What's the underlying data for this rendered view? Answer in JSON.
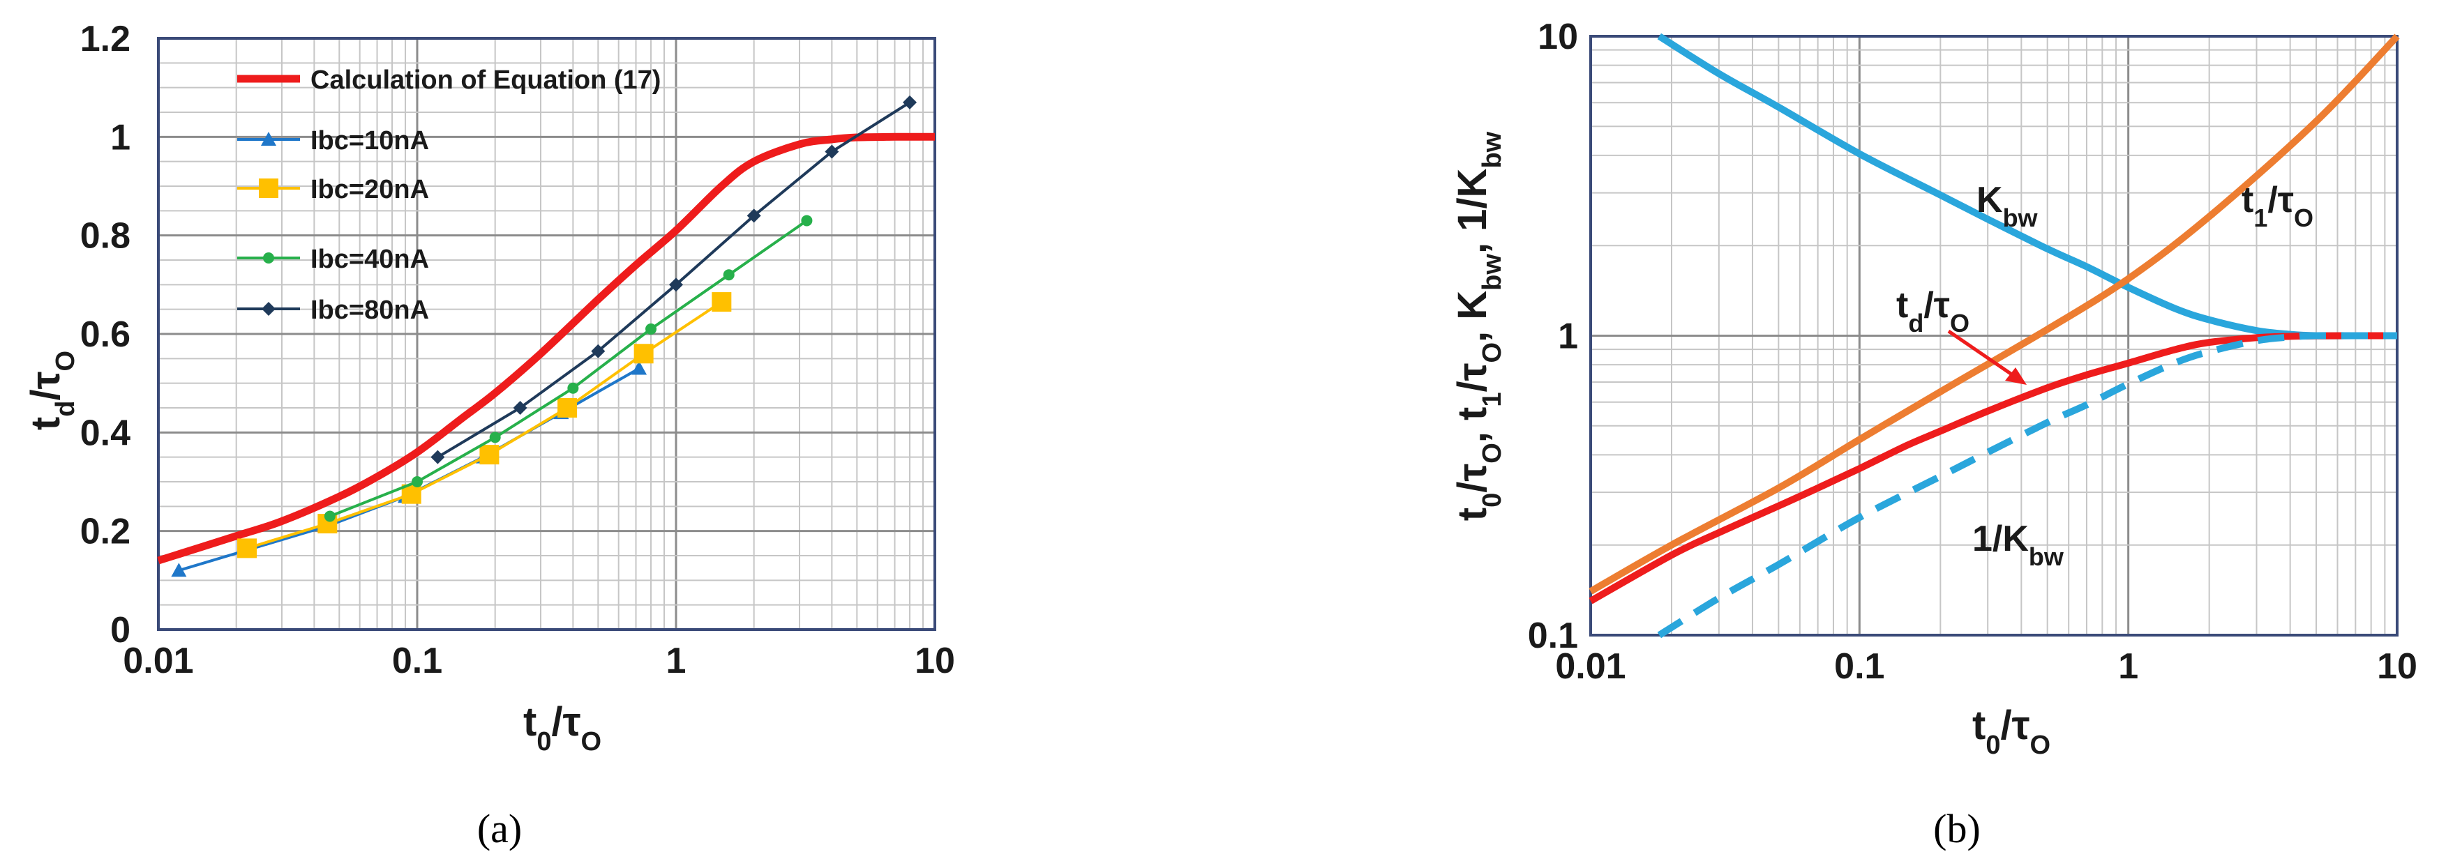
{
  "chart_data": [
    {
      "type": "line",
      "panel_label": "(a)",
      "xscale": "log",
      "xlim": [
        0.01,
        10
      ],
      "ylim": [
        0,
        1.2
      ],
      "grid": true,
      "legend_position": "top-left",
      "x_ticks": [
        "0.01",
        "0.1",
        "1",
        "10"
      ],
      "y_ticks": [
        "0",
        "0.2",
        "0.4",
        "0.6",
        "0.8",
        "1",
        "1.2"
      ],
      "ylabel": {
        "main": "t",
        "sub": "d",
        "sep": "/τ",
        "sub2": "O"
      },
      "xlabel": {
        "main": "t",
        "sub": "0",
        "sep": "/τ",
        "sub2": "O"
      },
      "series": [
        {
          "name": "Calculation of Equation (17)",
          "color": "#ee1c1c",
          "marker": "none",
          "x": [
            0.01,
            0.02,
            0.03,
            0.05,
            0.07,
            0.1,
            0.15,
            0.2,
            0.3,
            0.5,
            0.7,
            1,
            1.5,
            2,
            3,
            4,
            5,
            7,
            10
          ],
          "y": [
            0.14,
            0.19,
            0.22,
            0.27,
            0.31,
            0.36,
            0.43,
            0.48,
            0.56,
            0.67,
            0.74,
            0.81,
            0.9,
            0.95,
            0.985,
            0.995,
            0.999,
            1.0,
            1.0
          ]
        },
        {
          "name": "Ibc=10nA",
          "color": "#1f77c9",
          "marker": "triangle",
          "x": [
            0.012,
            0.045,
            0.09,
            0.18,
            0.36,
            0.72
          ],
          "y": [
            0.12,
            0.21,
            0.27,
            0.35,
            0.44,
            0.53
          ]
        },
        {
          "name": "Ibc=20nA",
          "color": "#ffc000",
          "marker": "square",
          "x": [
            0.022,
            0.045,
            0.095,
            0.19,
            0.38,
            0.75,
            1.5
          ],
          "y": [
            0.165,
            0.215,
            0.275,
            0.355,
            0.45,
            0.56,
            0.665
          ]
        },
        {
          "name": "Ibc=40nA",
          "color": "#27b04b",
          "marker": "circle",
          "x": [
            0.046,
            0.1,
            0.2,
            0.4,
            0.8,
            1.6,
            3.2
          ],
          "y": [
            0.23,
            0.3,
            0.39,
            0.49,
            0.61,
            0.72,
            0.83
          ]
        },
        {
          "name": "Ibc=80nA",
          "color": "#1f3a5a",
          "marker": "diamond",
          "x": [
            0.12,
            0.25,
            0.5,
            1.0,
            2.0,
            4.0,
            8.0
          ],
          "y": [
            0.35,
            0.45,
            0.565,
            0.7,
            0.84,
            0.97,
            1.07
          ]
        }
      ]
    },
    {
      "type": "line",
      "panel_label": "(b)",
      "xscale": "log",
      "yscale": "log",
      "xlim": [
        0.01,
        10
      ],
      "ylim": [
        0.1,
        10
      ],
      "grid": true,
      "x_ticks": [
        "0.01",
        "0.1",
        "1",
        "10"
      ],
      "y_ticks": [
        "0.1",
        "1",
        "10"
      ],
      "xlabel": {
        "main": "t",
        "sub": "0",
        "sep": "/τ",
        "sub2": "O"
      },
      "ylabel": {
        "parts": [
          "t",
          "0",
          "/τ",
          "O",
          ", t",
          "1",
          "/τ",
          "O",
          ", K",
          "bw",
          ", 1/K",
          "bw"
        ]
      },
      "annotations": {
        "kbw": {
          "main": "K",
          "sub": "bw"
        },
        "t1": {
          "main": "t",
          "sub": "1",
          "sep": "/τ",
          "sub2": "O"
        },
        "td": {
          "main": "t",
          "sub": "d",
          "sep": "/τ",
          "sub2": "O"
        },
        "inv": {
          "main": "1/K",
          "sub": "bw"
        }
      },
      "series": [
        {
          "key": "kbw",
          "color": "#2aa6dc",
          "dash": false,
          "x": [
            0.018,
            0.03,
            0.05,
            0.1,
            0.2,
            0.3,
            0.5,
            0.7,
            1,
            1.5,
            2,
            3,
            4,
            5,
            7,
            10
          ],
          "y": [
            10,
            7.5,
            5.8,
            4.05,
            2.95,
            2.45,
            1.95,
            1.7,
            1.45,
            1.23,
            1.13,
            1.04,
            1.01,
            1.0,
            1.0,
            1.0
          ]
        },
        {
          "key": "t1",
          "color": "#ed7d31",
          "dash": false,
          "x": [
            0.01,
            0.02,
            0.05,
            0.1,
            0.2,
            0.5,
            1,
            2,
            5,
            10
          ],
          "y": [
            0.14,
            0.2,
            0.31,
            0.45,
            0.65,
            1.05,
            1.55,
            2.5,
            5.2,
            10
          ]
        },
        {
          "key": "td",
          "color": "#ee1c1c",
          "dash": false,
          "x": [
            0.01,
            0.02,
            0.03,
            0.05,
            0.07,
            0.1,
            0.15,
            0.2,
            0.3,
            0.5,
            0.7,
            1,
            1.5,
            2,
            3,
            4,
            5,
            7,
            10
          ],
          "y": [
            0.13,
            0.185,
            0.22,
            0.27,
            0.31,
            0.36,
            0.43,
            0.48,
            0.56,
            0.67,
            0.74,
            0.81,
            0.9,
            0.95,
            0.985,
            0.995,
            0.999,
            1.0,
            1.0
          ]
        },
        {
          "key": "inv",
          "color": "#2aa6dc",
          "dash": true,
          "x": [
            0.018,
            0.03,
            0.05,
            0.1,
            0.2,
            0.3,
            0.5,
            0.7,
            1,
            1.5,
            2,
            3,
            4,
            5,
            7,
            10
          ],
          "y": [
            0.1,
            0.133,
            0.172,
            0.247,
            0.339,
            0.408,
            0.513,
            0.588,
            0.69,
            0.813,
            0.885,
            0.962,
            0.99,
            1.0,
            1.0,
            1.0
          ]
        }
      ]
    }
  ]
}
